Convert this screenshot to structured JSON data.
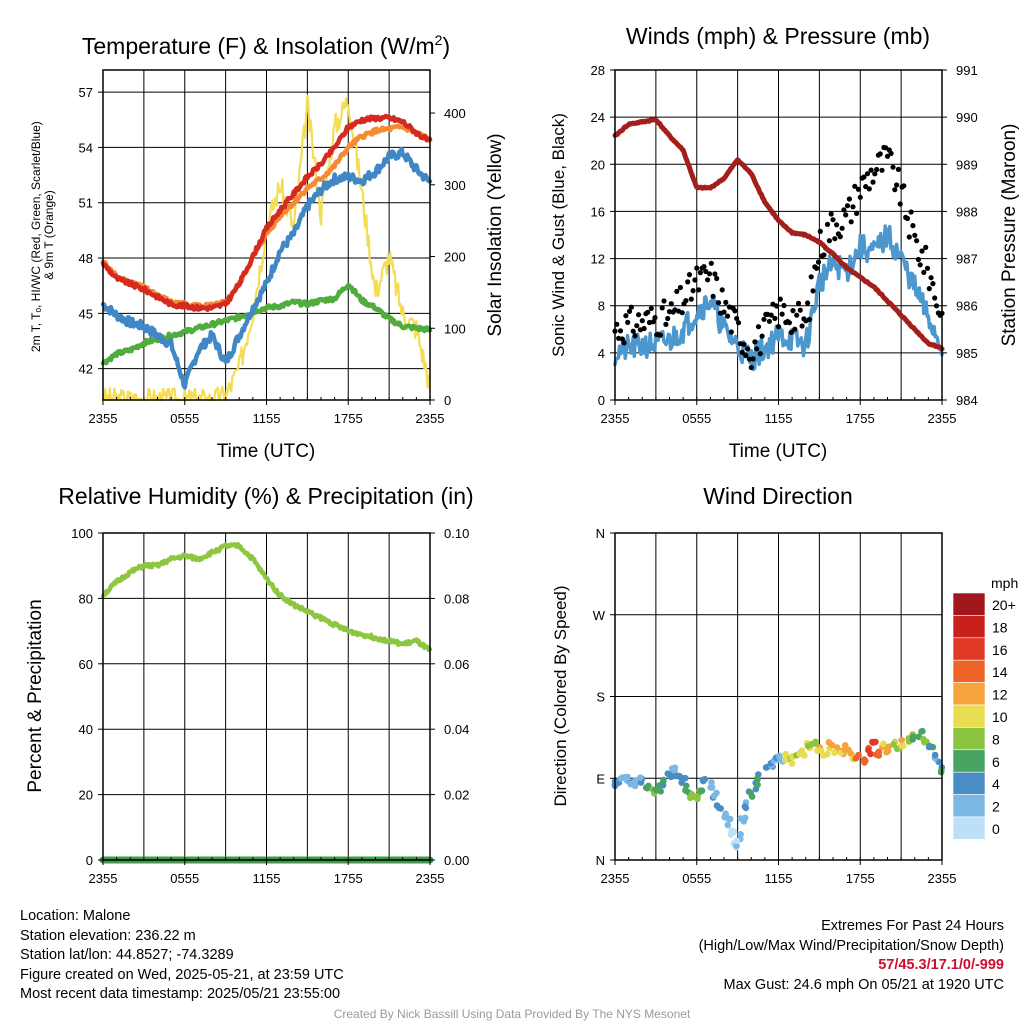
{
  "chart_data": [
    {
      "id": "temp",
      "type": "line",
      "title": "Temperature (F) & Insolation (W/m",
      "title_sup": "2",
      "title_end": ")",
      "xlabel": "Time (UTC)",
      "ylabel_left_lines": [
        "2m T, Tₒ, HI/WC (Red, Green, Scarlet/Blue)",
        "& 9m T (Orange)"
      ],
      "ylabel_right": "Solar Insolation (Yellow)",
      "x_ticks": [
        "2355",
        "0555",
        "1155",
        "1755",
        "2355"
      ],
      "hours": [
        0,
        1,
        2,
        3,
        4,
        5,
        6,
        7,
        8,
        9,
        10,
        11,
        12,
        13,
        14,
        15,
        16,
        17,
        18,
        19,
        20,
        21,
        22,
        23,
        24
      ],
      "ylim_left": [
        40.3,
        58.2
      ],
      "yticks_left": [
        42,
        45,
        48,
        51,
        54,
        57
      ],
      "ylim_right": [
        0,
        460
      ],
      "yticks_right": [
        0,
        100,
        200,
        300,
        400
      ],
      "series": [
        {
          "key": "t9m",
          "color": "#f48a32",
          "axis": "left",
          "values": [
            47.8,
            47.0,
            46.7,
            46.4,
            46.0,
            45.6,
            45.5,
            45.4,
            45.4,
            45.6,
            46.6,
            48.0,
            49.3,
            50.3,
            51.0,
            51.8,
            52.3,
            53.0,
            54.0,
            54.6,
            54.9,
            55.0,
            55.1,
            54.8,
            54.4
          ]
        },
        {
          "key": "t2m",
          "color": "#d42a1f",
          "axis": "left",
          "values": [
            47.7,
            46.9,
            46.6,
            46.3,
            45.9,
            45.5,
            45.4,
            45.3,
            45.3,
            45.5,
            46.6,
            48.1,
            49.6,
            50.6,
            51.5,
            52.4,
            53.1,
            54.0,
            55.1,
            55.5,
            55.6,
            55.6,
            55.4,
            54.8,
            54.3
          ]
        },
        {
          "key": "td",
          "color": "#4fac3d",
          "axis": "left",
          "values": [
            42.3,
            42.8,
            43.0,
            43.4,
            43.6,
            43.8,
            44.0,
            44.2,
            44.4,
            44.6,
            44.8,
            45.1,
            45.3,
            45.4,
            45.6,
            45.5,
            45.7,
            45.8,
            46.6,
            45.7,
            45.3,
            44.7,
            44.3,
            44.2,
            44.1
          ]
        },
        {
          "key": "hiwc",
          "color": "#4187c5",
          "axis": "left",
          "values": [
            45.5,
            44.9,
            44.5,
            44.3,
            43.8,
            43.3,
            41.1,
            43.0,
            43.8,
            42.3,
            43.8,
            45.3,
            46.6,
            48.4,
            49.3,
            50.8,
            51.7,
            52.3,
            52.4,
            52.2,
            52.7,
            53.5,
            53.7,
            52.8,
            52.1
          ]
        },
        {
          "key": "solar",
          "color": "#f4dc55",
          "axis": "right",
          "values": [
            0,
            0,
            0,
            0,
            0,
            0,
            0,
            0,
            0,
            5,
            45,
            125,
            240,
            300,
            240,
            410,
            260,
            380,
            420,
            290,
            150,
            200,
            120,
            100,
            20
          ]
        }
      ]
    },
    {
      "id": "wind",
      "type": "line",
      "title": "Winds (mph) & Pressure (mb)",
      "xlabel": "Time (UTC)",
      "ylabel_left": "Sonic Wind & Gust (Blue, Black)",
      "ylabel_right": "Station Pressure (Maroon)",
      "x_ticks": [
        "2355",
        "0555",
        "1155",
        "1755",
        "2355"
      ],
      "hours": [
        0,
        1,
        2,
        3,
        4,
        5,
        6,
        7,
        8,
        9,
        10,
        11,
        12,
        13,
        14,
        15,
        16,
        17,
        18,
        19,
        20,
        21,
        22,
        23,
        24
      ],
      "ylim_left": [
        0,
        28
      ],
      "yticks_left": [
        0,
        4,
        8,
        12,
        16,
        20,
        24,
        28
      ],
      "ylim_right": [
        984,
        991
      ],
      "yticks_right": [
        984,
        985,
        986,
        987,
        988,
        989,
        990,
        991
      ],
      "series": [
        {
          "key": "wind",
          "color": "#4d97cf",
          "axis": "left",
          "values": [
            4.0,
            4.4,
            4.6,
            4.8,
            5.0,
            6.0,
            7.5,
            8.5,
            6.0,
            4.6,
            3.5,
            4.4,
            5.5,
            5.2,
            4.6,
            10.0,
            11.5,
            11.0,
            13.0,
            12.5,
            14.0,
            12.0,
            9.5,
            7.0,
            4.4
          ]
        },
        {
          "key": "gust",
          "color": "#000000",
          "axis": "left",
          "style": "points",
          "values": [
            6.0,
            6.4,
            6.6,
            6.9,
            7.0,
            8.5,
            10.0,
            10.6,
            8.0,
            6.0,
            4.2,
            5.8,
            7.5,
            7.2,
            6.5,
            13.0,
            15.0,
            15.5,
            18.0,
            19.5,
            20.5,
            17.5,
            13.5,
            11.0,
            7.0
          ]
        },
        {
          "key": "pressure",
          "color": "#a41f1c",
          "axis": "right",
          "values": [
            989.6,
            989.85,
            989.9,
            989.95,
            989.6,
            989.3,
            988.5,
            988.5,
            988.7,
            989.1,
            988.8,
            988.2,
            987.8,
            987.55,
            987.5,
            987.35,
            987.1,
            986.8,
            986.6,
            986.4,
            986.1,
            985.8,
            985.5,
            985.2,
            985.1
          ]
        }
      ]
    },
    {
      "id": "rh",
      "type": "line",
      "title": "Relative Humidity (%) & Precipitation (in)",
      "ylabel_left": "Percent & Precipitation",
      "x_ticks": [
        "2355",
        "0555",
        "1155",
        "1755",
        "2355"
      ],
      "hours": [
        0,
        1,
        2,
        3,
        4,
        5,
        6,
        7,
        8,
        9,
        10,
        11,
        12,
        13,
        14,
        15,
        16,
        17,
        18,
        19,
        20,
        21,
        22,
        23,
        24
      ],
      "ylim_left": [
        0,
        100
      ],
      "yticks_left": [
        0,
        20,
        40,
        60,
        80,
        100
      ],
      "ylim_right": [
        0,
        0.1
      ],
      "yticks_right": [
        "0.00",
        "0.02",
        "0.04",
        "0.06",
        "0.08",
        "0.10"
      ],
      "series": [
        {
          "key": "rh",
          "color": "#8dc641",
          "axis": "left",
          "values": [
            81,
            85,
            88,
            90,
            90,
            92,
            93,
            92,
            94,
            96,
            96,
            92,
            86,
            81,
            78,
            76,
            74,
            72,
            70,
            69,
            68,
            67,
            66,
            67,
            64
          ]
        },
        {
          "key": "precip",
          "color": "#3e9a48",
          "axis": "right",
          "values": [
            0,
            0,
            0,
            0,
            0,
            0,
            0,
            0,
            0,
            0,
            0,
            0,
            0,
            0,
            0,
            0,
            0,
            0,
            0,
            0,
            0,
            0,
            0,
            0,
            0
          ]
        }
      ]
    },
    {
      "id": "dir",
      "type": "scatter",
      "title": "Wind Direction",
      "ylabel_left": "Direction (Colored By Speed)",
      "x_ticks": [
        "2355",
        "0555",
        "1155",
        "1755",
        "2355"
      ],
      "y_ticks": [
        "N",
        "E",
        "S",
        "W",
        "N"
      ],
      "ylim": [
        0,
        360
      ],
      "points": [
        {
          "h": 0.0,
          "d": 85,
          "s": 4
        },
        {
          "h": 0.4,
          "d": 88,
          "s": 4
        },
        {
          "h": 0.8,
          "d": 90,
          "s": 4
        },
        {
          "h": 1.2,
          "d": 85,
          "s": 4
        },
        {
          "h": 1.6,
          "d": 84,
          "s": 4
        },
        {
          "h": 2.0,
          "d": 88,
          "s": 4
        },
        {
          "h": 2.4,
          "d": 82,
          "s": 6
        },
        {
          "h": 2.8,
          "d": 75,
          "s": 8
        },
        {
          "h": 3.2,
          "d": 78,
          "s": 7
        },
        {
          "h": 3.6,
          "d": 85,
          "s": 6
        },
        {
          "h": 4.0,
          "d": 92,
          "s": 5
        },
        {
          "h": 4.3,
          "d": 98,
          "s": 4
        },
        {
          "h": 4.6,
          "d": 93,
          "s": 6
        },
        {
          "h": 5.0,
          "d": 88,
          "s": 5
        },
        {
          "h": 5.3,
          "d": 78,
          "s": 7
        },
        {
          "h": 5.6,
          "d": 72,
          "s": 8
        },
        {
          "h": 6.0,
          "d": 70,
          "s": 9
        },
        {
          "h": 6.3,
          "d": 78,
          "s": 8
        },
        {
          "h": 6.6,
          "d": 85,
          "s": 4
        },
        {
          "h": 7.0,
          "d": 82,
          "s": 4
        },
        {
          "h": 7.3,
          "d": 70,
          "s": 4
        },
        {
          "h": 7.6,
          "d": 60,
          "s": 4
        },
        {
          "h": 8.0,
          "d": 50,
          "s": 3
        },
        {
          "h": 8.3,
          "d": 42,
          "s": 3
        },
        {
          "h": 8.6,
          "d": 30,
          "s": 2
        },
        {
          "h": 8.8,
          "d": 15,
          "s": 2
        },
        {
          "h": 9.1,
          "d": 25,
          "s": 2
        },
        {
          "h": 9.4,
          "d": 45,
          "s": 3
        },
        {
          "h": 9.7,
          "d": 60,
          "s": 4
        },
        {
          "h": 10.0,
          "d": 72,
          "s": 6
        },
        {
          "h": 10.3,
          "d": 82,
          "s": 6
        },
        {
          "h": 10.6,
          "d": 92,
          "s": 6
        },
        {
          "h": 11.0,
          "d": 100,
          "s": 5
        },
        {
          "h": 11.4,
          "d": 106,
          "s": 4
        },
        {
          "h": 11.8,
          "d": 110,
          "s": 4
        },
        {
          "h": 12.2,
          "d": 112,
          "s": 4
        },
        {
          "h": 12.6,
          "d": 114,
          "s": 10
        },
        {
          "h": 13.0,
          "d": 110,
          "s": 10
        },
        {
          "h": 13.4,
          "d": 115,
          "s": 10
        },
        {
          "h": 13.8,
          "d": 118,
          "s": 11
        },
        {
          "h": 14.2,
          "d": 125,
          "s": 10
        },
        {
          "h": 14.6,
          "d": 130,
          "s": 9
        },
        {
          "h": 15.0,
          "d": 122,
          "s": 12
        },
        {
          "h": 15.4,
          "d": 118,
          "s": 11
        },
        {
          "h": 15.8,
          "d": 126,
          "s": 12
        },
        {
          "h": 16.2,
          "d": 122,
          "s": 12
        },
        {
          "h": 16.6,
          "d": 118,
          "s": 12
        },
        {
          "h": 17.0,
          "d": 124,
          "s": 13
        },
        {
          "h": 17.4,
          "d": 115,
          "s": 12
        },
        {
          "h": 17.8,
          "d": 112,
          "s": 14
        },
        {
          "h": 18.2,
          "d": 108,
          "s": 15
        },
        {
          "h": 18.6,
          "d": 120,
          "s": 16
        },
        {
          "h": 19.0,
          "d": 128,
          "s": 17
        },
        {
          "h": 19.3,
          "d": 118,
          "s": 15
        },
        {
          "h": 19.6,
          "d": 124,
          "s": 12
        },
        {
          "h": 20.0,
          "d": 122,
          "s": 13
        },
        {
          "h": 20.4,
          "d": 130,
          "s": 10
        },
        {
          "h": 20.8,
          "d": 124,
          "s": 10
        },
        {
          "h": 21.2,
          "d": 128,
          "s": 12
        },
        {
          "h": 21.6,
          "d": 132,
          "s": 9
        },
        {
          "h": 22.0,
          "d": 135,
          "s": 8
        },
        {
          "h": 22.4,
          "d": 138,
          "s": 7
        },
        {
          "h": 22.8,
          "d": 133,
          "s": 8
        },
        {
          "h": 23.2,
          "d": 128,
          "s": 6
        },
        {
          "h": 23.6,
          "d": 112,
          "s": 4
        },
        {
          "h": 24.0,
          "d": 100,
          "s": 6
        }
      ]
    }
  ],
  "legend": {
    "title": "mph",
    "labels": [
      "20+",
      "18",
      "16",
      "14",
      "12",
      "10",
      "8",
      "6",
      "4",
      "2",
      "0"
    ],
    "colors": [
      "#a0181c",
      "#c8211d",
      "#e03a26",
      "#f06428",
      "#f6a33c",
      "#e8dc50",
      "#8bc441",
      "#47a462",
      "#4a8cc6",
      "#7bb8e4",
      "#bde0f7"
    ]
  },
  "info": {
    "location": "Location: Malone",
    "elevation": "Station elevation: 236.22 m",
    "latlon": "Station lat/lon: 44.8527; -74.3289",
    "created": "Figure created on Wed, 2025-05-21, at 23:59 UTC",
    "recent": "Most recent data timestamp: 2025/05/21 23:55:00"
  },
  "extremes": {
    "title": "Extremes For Past 24 Hours",
    "subtitle": "(High/Low/Max Wind/Precipitation/Snow Depth)",
    "values": "57/45.3/17.1/0/-999",
    "gust": "Max Gust: 24.6 mph On 05/21 at 1920 UTC"
  },
  "credit": "Created By Nick Bassill Using Data Provided By The NYS Mesonet"
}
